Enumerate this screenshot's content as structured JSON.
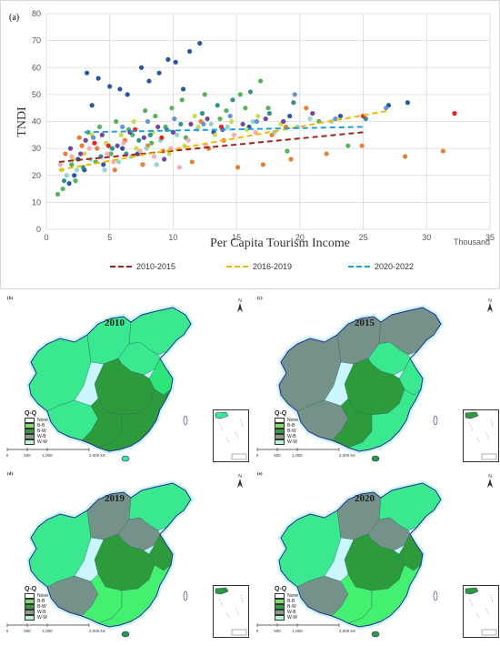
{
  "chart_data": {
    "type": "scatter",
    "panel_label": "(a)",
    "xlabel": "Per Capita Tourism Income",
    "xunit": "Thousand",
    "ylabel": "TNDI",
    "xlim": [
      0,
      35
    ],
    "ylim": [
      0,
      80
    ],
    "xticks": [
      0,
      5,
      10,
      15,
      20,
      25,
      30,
      35
    ],
    "yticks": [
      0,
      10,
      20,
      30,
      40,
      50,
      60,
      70,
      80
    ],
    "grid": true,
    "legend_position": "bottom",
    "trendlines": [
      {
        "name": "2010-2015",
        "color": "#a32020",
        "x": [
          1,
          25
        ],
        "y": [
          25,
          36
        ]
      },
      {
        "name": "2016-2019",
        "color": "#f5b800",
        "x": [
          1,
          27
        ],
        "y": [
          22,
          44
        ]
      },
      {
        "name": "2020-2022",
        "color": "#1ba1e2",
        "x": [
          3,
          25
        ],
        "y": [
          36,
          38
        ]
      }
    ],
    "series": [
      {
        "color": "#1f4e9c",
        "points": [
          [
            3.2,
            58
          ],
          [
            4.1,
            56
          ],
          [
            3.6,
            46
          ],
          [
            5.0,
            53
          ],
          [
            5.8,
            52
          ],
          [
            6.4,
            50
          ],
          [
            7.5,
            60
          ],
          [
            8.1,
            55
          ],
          [
            8.9,
            58
          ],
          [
            9.6,
            63
          ],
          [
            10.2,
            62
          ],
          [
            11.3,
            66
          ],
          [
            12.1,
            69
          ],
          [
            10.8,
            52
          ],
          [
            2.5,
            26
          ],
          [
            1.8,
            17
          ],
          [
            2.2,
            20
          ],
          [
            3.0,
            22
          ],
          [
            4.5,
            24
          ],
          [
            6.0,
            30
          ],
          [
            7.2,
            28
          ],
          [
            13.2,
            36
          ],
          [
            16.0,
            38
          ],
          [
            28.5,
            47
          ],
          [
            27.0,
            46
          ],
          [
            19.2,
            42
          ],
          [
            23.2,
            42
          ]
        ]
      },
      {
        "color": "#e8782a",
        "points": [
          [
            1.5,
            28
          ],
          [
            2.8,
            31
          ],
          [
            4.0,
            30
          ],
          [
            6.2,
            33
          ],
          [
            8.0,
            31
          ],
          [
            9.2,
            29
          ],
          [
            11.5,
            25
          ],
          [
            12.8,
            30
          ],
          [
            14.0,
            33
          ],
          [
            15.1,
            23
          ],
          [
            17.8,
            35
          ],
          [
            18.9,
            38
          ],
          [
            20.5,
            45
          ],
          [
            22.1,
            28
          ],
          [
            24.9,
            31
          ],
          [
            28.3,
            27
          ],
          [
            31.3,
            29
          ],
          [
            19.3,
            26
          ],
          [
            12.2,
            40
          ],
          [
            7.6,
            24
          ],
          [
            5.4,
            22
          ],
          [
            2.6,
            34
          ],
          [
            17.1,
            24
          ]
        ]
      },
      {
        "color": "#4caf50",
        "points": [
          [
            2.0,
            24
          ],
          [
            3.3,
            36
          ],
          [
            4.2,
            38
          ],
          [
            5.5,
            40
          ],
          [
            6.5,
            37
          ],
          [
            7.8,
            44
          ],
          [
            8.6,
            42
          ],
          [
            9.9,
            45
          ],
          [
            10.7,
            48
          ],
          [
            12.5,
            50
          ],
          [
            14.2,
            44
          ],
          [
            15.3,
            50
          ],
          [
            16.9,
            55
          ],
          [
            17.5,
            45
          ],
          [
            19.0,
            29
          ],
          [
            21.5,
            40
          ],
          [
            23.8,
            31
          ],
          [
            0.9,
            13
          ],
          [
            1.3,
            15
          ],
          [
            2.3,
            18
          ],
          [
            3.9,
            25
          ],
          [
            5.1,
            28
          ],
          [
            6.8,
            35
          ],
          [
            8.3,
            32
          ],
          [
            9.4,
            38
          ],
          [
            11.0,
            34
          ],
          [
            13.7,
            41
          ],
          [
            15.7,
            45
          ]
        ]
      },
      {
        "color": "#c8d94a",
        "points": [
          [
            1.2,
            22
          ],
          [
            2.1,
            26
          ],
          [
            3.0,
            28
          ],
          [
            4.7,
            32
          ],
          [
            5.9,
            35
          ],
          [
            7.1,
            30
          ],
          [
            8.4,
            36
          ],
          [
            9.7,
            28
          ],
          [
            10.9,
            31
          ],
          [
            12.0,
            38
          ],
          [
            13.3,
            35
          ],
          [
            14.6,
            40
          ],
          [
            15.8,
            37
          ],
          [
            16.7,
            42
          ],
          [
            18.5,
            39
          ],
          [
            3.6,
            35
          ],
          [
            6.9,
            40
          ],
          [
            11.7,
            42
          ]
        ]
      },
      {
        "color": "#8fd3c8",
        "points": [
          [
            1.6,
            20
          ],
          [
            2.4,
            22
          ],
          [
            3.5,
            26
          ],
          [
            4.6,
            22
          ],
          [
            5.7,
            25
          ],
          [
            6.7,
            27
          ],
          [
            7.9,
            30
          ],
          [
            9.0,
            33
          ],
          [
            10.3,
            35
          ],
          [
            11.9,
            37
          ],
          [
            13.0,
            39
          ],
          [
            14.3,
            38
          ],
          [
            16.3,
            40
          ],
          [
            18.0,
            36
          ],
          [
            19.8,
            38
          ],
          [
            20.8,
            41
          ],
          [
            22.5,
            40
          ],
          [
            8.7,
            24
          ]
        ]
      },
      {
        "color": "#6a3d9a",
        "points": [
          [
            1.9,
            30
          ],
          [
            3.1,
            33
          ],
          [
            4.4,
            35
          ],
          [
            5.6,
            31
          ],
          [
            6.6,
            36
          ],
          [
            7.7,
            34
          ],
          [
            8.8,
            38
          ],
          [
            10.0,
            36
          ],
          [
            11.4,
            39
          ],
          [
            12.7,
            41
          ],
          [
            13.9,
            37
          ],
          [
            15.5,
            39
          ],
          [
            17.3,
            41
          ],
          [
            18.7,
            40
          ],
          [
            21.0,
            43
          ],
          [
            2.7,
            28
          ],
          [
            9.3,
            26
          ]
        ]
      },
      {
        "color": "#f7a8b8",
        "points": [
          [
            1.1,
            24
          ],
          [
            2.0,
            27
          ],
          [
            3.4,
            30
          ],
          [
            4.8,
            28
          ],
          [
            6.1,
            32
          ],
          [
            7.4,
            29
          ],
          [
            8.5,
            27
          ],
          [
            9.8,
            30
          ],
          [
            11.2,
            33
          ],
          [
            12.6,
            31
          ],
          [
            14.8,
            35
          ],
          [
            16.5,
            36
          ],
          [
            5.3,
            25
          ],
          [
            10.5,
            23
          ]
        ]
      },
      {
        "color": "#2a8a8a",
        "points": [
          [
            1.4,
            18
          ],
          [
            2.9,
            23
          ],
          [
            4.3,
            27
          ],
          [
            5.2,
            30
          ],
          [
            6.3,
            28
          ],
          [
            7.3,
            33
          ],
          [
            8.2,
            35
          ],
          [
            9.5,
            37
          ],
          [
            10.6,
            39
          ],
          [
            12.3,
            43
          ],
          [
            13.5,
            46
          ],
          [
            14.7,
            48
          ],
          [
            16.1,
            51
          ],
          [
            17.6,
            43
          ],
          [
            19.5,
            47
          ],
          [
            25.2,
            41
          ]
        ]
      },
      {
        "color": "#e31a1c",
        "points": [
          [
            32.2,
            43
          ],
          [
            3.8,
            32
          ],
          [
            7.0,
            37
          ],
          [
            13.8,
            38
          ],
          [
            25.0,
            42
          ],
          [
            4.9,
            31
          ],
          [
            9.1,
            34
          ]
        ]
      },
      {
        "color": "#5b8fd6",
        "points": [
          [
            3.7,
            34
          ],
          [
            6.0,
            38
          ],
          [
            8.0,
            40
          ],
          [
            10.1,
            41
          ],
          [
            12.4,
            39
          ],
          [
            14.5,
            42
          ],
          [
            16.6,
            40
          ],
          [
            19.6,
            50
          ],
          [
            22.8,
            41
          ],
          [
            26.8,
            45
          ]
        ]
      }
    ]
  },
  "maps": [
    {
      "label": "(b)",
      "year": "2010"
    },
    {
      "label": "(c)",
      "year": "2015"
    },
    {
      "label": "(d)",
      "year": "2019"
    },
    {
      "label": "(e)",
      "year": "2020"
    }
  ],
  "map_legend": {
    "title": "Q-Q",
    "items": [
      {
        "label": "None",
        "color": "#ffffff"
      },
      {
        "label": "B-B",
        "color": "#7ddc6c"
      },
      {
        "label": "B-W",
        "color": "#3a9a3f"
      },
      {
        "label": "W-B",
        "color": "#8a9a8c"
      },
      {
        "label": "W-W",
        "color": "#b8f5d4"
      }
    ]
  },
  "map_scale": {
    "ticks": [
      "0",
      "500",
      "1,000",
      "2,000 km"
    ]
  },
  "map_colors": {
    "base": "#39e88f",
    "light_green": "#2ee57a",
    "dark_green": "#2d9a3c",
    "gray": "#74928a",
    "bright": "#44f070",
    "boundary": "#2b2b8a"
  },
  "compass_label": "N"
}
